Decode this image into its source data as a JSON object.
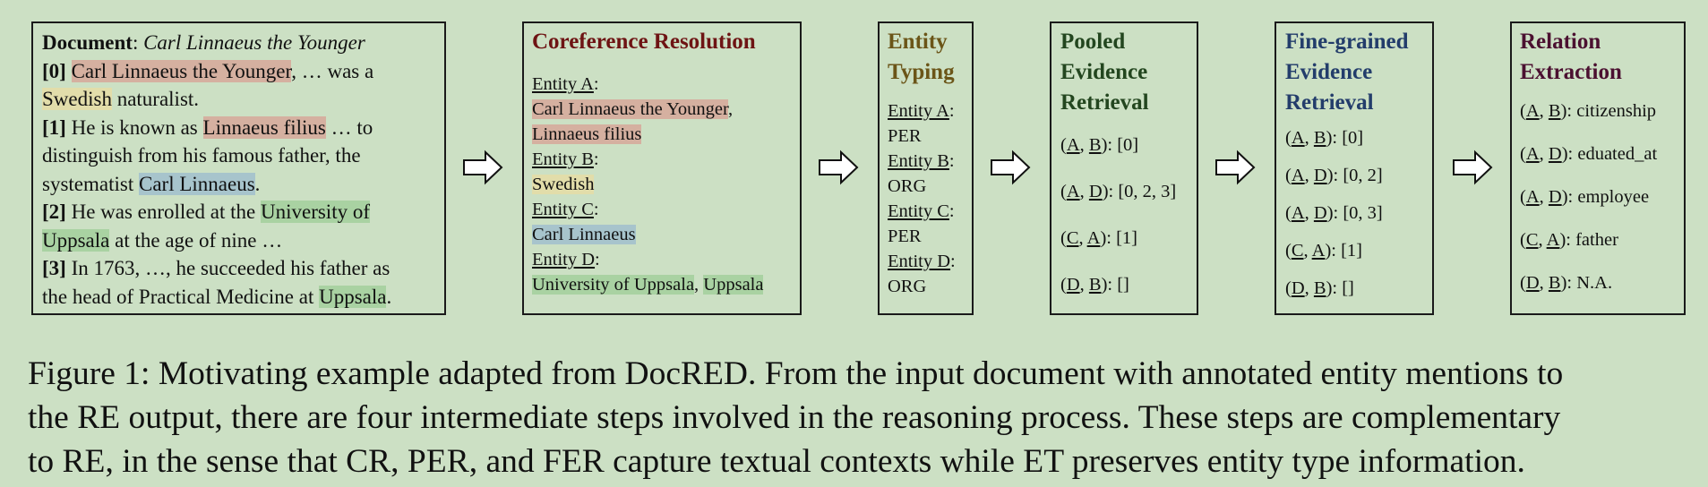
{
  "document": {
    "title_bold": "Document",
    "title_rest": ": ",
    "title_entity": "Carl Linnaeus the Younger",
    "s0_idx": "[0]",
    "s0_m1": "Carl Linnaeus the Younger",
    "s0_a": ", …  was a",
    "s0_m2": "Swedish",
    "s0_b": " naturalist.",
    "s1_idx": "[1]",
    "s1_a": " He is known as ",
    "s1_m1": "Linnaeus filius",
    "s1_b": " … to",
    "s1_c": "distinguish from his famous father, the",
    "s1_d": "systematist ",
    "s1_m2": "Carl Linnaeus",
    "s1_e": ".",
    "s2_idx": "[2]",
    "s2_a": " He was enrolled at the ",
    "s2_m1a": "University of",
    "s2_m1b": "Uppsala",
    "s2_b": " at the age of nine …",
    "s3_idx": "[3]",
    "s3_a": " In 1763, …, he succeeded his father as",
    "s3_b": "the head of Practical Medicine at ",
    "s3_m1": "Uppsala",
    "s3_c": "."
  },
  "coref": {
    "title": "Coreference Resolution",
    "entities": [
      {
        "label": "Entity A",
        "mentions": [
          "Carl Linnaeus the Younger",
          "Linnaeus filius"
        ]
      },
      {
        "label": "Entity B",
        "mentions": [
          "Swedish"
        ]
      },
      {
        "label": "Entity C",
        "mentions": [
          "Carl Linnaeus"
        ]
      },
      {
        "label": "Entity D",
        "mentions": [
          "University of Uppsala",
          "Uppsala"
        ]
      }
    ]
  },
  "typing": {
    "title_l1": "Entity",
    "title_l2": "Typing",
    "entities": [
      {
        "label": "Entity A",
        "type": "PER"
      },
      {
        "label": "Entity B",
        "type": "ORG"
      },
      {
        "label": "Entity C",
        "type": "PER"
      },
      {
        "label": "Entity D",
        "type": "ORG"
      }
    ]
  },
  "pooled": {
    "title_l1": "Pooled",
    "title_l2": "Evidence",
    "title_l3": "Retrieval",
    "pairs": [
      {
        "h": "A",
        "t": "B",
        "value": "[0]"
      },
      {
        "h": "A",
        "t": "D",
        "value": "[0, 2, 3]"
      },
      {
        "h": "C",
        "t": "A",
        "value": "[1]"
      },
      {
        "h": "D",
        "t": "B",
        "value": "[]"
      }
    ]
  },
  "fine": {
    "title_l1": "Fine-grained",
    "title_l2": "Evidence",
    "title_l3": "Retrieval",
    "pairs": [
      {
        "h": "A",
        "t": "B",
        "value": "[0]"
      },
      {
        "h": "A",
        "t": "D",
        "value": "[0, 2]"
      },
      {
        "h": "A",
        "t": "D",
        "value": "[0, 3]"
      },
      {
        "h": "C",
        "t": "A",
        "value": "[1]"
      },
      {
        "h": "D",
        "t": "B",
        "value": "[]"
      }
    ]
  },
  "relation": {
    "title_l1": "Relation",
    "title_l2": "Extraction",
    "pairs": [
      {
        "h": "A",
        "t": "B",
        "value": "citizenship"
      },
      {
        "h": "A",
        "t": "D",
        "value": "eduated_at"
      },
      {
        "h": "A",
        "t": "D",
        "value": "employee"
      },
      {
        "h": "C",
        "t": "A",
        "value": "father"
      },
      {
        "h": "D",
        "t": "B",
        "value": "N.A."
      }
    ]
  },
  "caption": {
    "line1": "Figure 1: Motivating example adapted from DocRED. From the input document with annotated entity mentions to",
    "line2": "the RE output, there are four intermediate steps involved in the reasoning process. These steps are complementary",
    "line3": "to RE, in the sense that CR, PER, and FER capture textual contexts while ET preserves entity type information."
  },
  "colors": {
    "background": "#cce0c4",
    "highlight_entity_a": "#d5b0a0",
    "highlight_entity_b": "#e2ddaa",
    "highlight_entity_c": "#a7c4cc",
    "highlight_entity_d": "#a9d2a2"
  }
}
